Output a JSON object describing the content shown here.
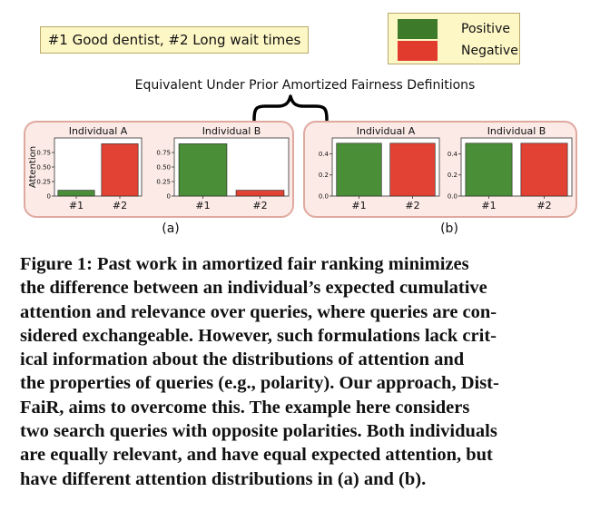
{
  "query_box": {
    "text": "#1 Good dentist, #2 Long wait times"
  },
  "legend": [
    {
      "label": "Positive",
      "color": "#3d7a2a"
    },
    {
      "label": "Negative",
      "color": "#e03b2c"
    }
  ],
  "equivalence_label": "Equivalent Under Prior Amortized Fairness Definitions",
  "panel_labels": {
    "a": "(a)",
    "b": "(b)"
  },
  "chart_data": [
    {
      "type": "bar",
      "panel": "a",
      "title": "Individual A",
      "categories": [
        "#1",
        "#2"
      ],
      "values": [
        0.1,
        0.9
      ],
      "colors": [
        "#4a8f38",
        "#e24233"
      ],
      "ylabel": "Attention",
      "ylim": [
        0,
        1.0
      ],
      "yticks": [
        0.0,
        0.25,
        0.5,
        0.75
      ],
      "ytick_labels": [
        "0",
        "0.25",
        "0.50",
        "0.75"
      ],
      "xlabel": ""
    },
    {
      "type": "bar",
      "panel": "a",
      "title": "Individual B",
      "categories": [
        "#1",
        "#2"
      ],
      "values": [
        0.9,
        0.1
      ],
      "colors": [
        "#4a8f38",
        "#e24233"
      ],
      "ylabel": "",
      "ylim": [
        0,
        1.0
      ],
      "yticks": [
        0.0,
        0.25,
        0.5,
        0.75
      ],
      "ytick_labels": [
        "0",
        "0.25",
        "0.50",
        "0.75"
      ],
      "xlabel": ""
    },
    {
      "type": "bar",
      "panel": "b",
      "title": "Individual A",
      "categories": [
        "#1",
        "#2"
      ],
      "values": [
        0.5,
        0.5
      ],
      "colors": [
        "#4a8f38",
        "#e24233"
      ],
      "ylabel": "",
      "ylim": [
        0,
        0.55
      ],
      "yticks": [
        0.0,
        0.2,
        0.4
      ],
      "ytick_labels": [
        "0.0",
        "0.2",
        "0.4"
      ],
      "xlabel": ""
    },
    {
      "type": "bar",
      "panel": "b",
      "title": "Individual B",
      "categories": [
        "#1",
        "#2"
      ],
      "values": [
        0.5,
        0.5
      ],
      "colors": [
        "#4a8f38",
        "#e24233"
      ],
      "ylabel": "",
      "ylim": [
        0,
        0.55
      ],
      "yticks": [
        0.0,
        0.2,
        0.4
      ],
      "ytick_labels": [
        "0.0",
        "0.2",
        "0.4"
      ],
      "xlabel": ""
    }
  ],
  "caption_lines": [
    "Figure 1: Past work in amortized fair ranking minimizes",
    "the difference between an individual’s expected cumulative",
    "attention and relevance over queries, where queries are con-",
    "sidered exchangeable. However, such formulations lack crit-",
    "ical information about the distributions of attention and",
    "the properties of queries (e.g., polarity). Our approach, Dist-",
    "FaiR, aims to overcome this. The example here considers",
    "two search queries with opposite polarities. Both individuals",
    "are equally relevant, and have equal expected attention, but",
    "have different attention distributions in (a) and (b)."
  ]
}
